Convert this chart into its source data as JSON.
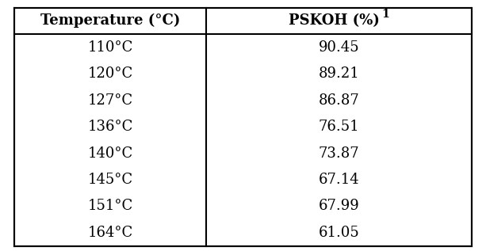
{
  "col1_header": "Temperature (°C)",
  "col1_header_superscript": "0",
  "col2_header": "PSKOH (%)",
  "col2_header_superscript": "1",
  "temperatures": [
    "110°C",
    "120°C",
    "127°C",
    "136°C",
    "140°C",
    "145°C",
    "151°C",
    "164°C"
  ],
  "pskoh_values": [
    "90.45",
    "89.21",
    "86.87",
    "76.51",
    "73.87",
    "67.14",
    "67.99",
    "61.05"
  ],
  "bg_color": "#ffffff",
  "border_color": "#000000",
  "text_color": "#000000",
  "header_fontsize": 13,
  "cell_fontsize": 13,
  "fig_width": 6.13,
  "fig_height": 3.17
}
